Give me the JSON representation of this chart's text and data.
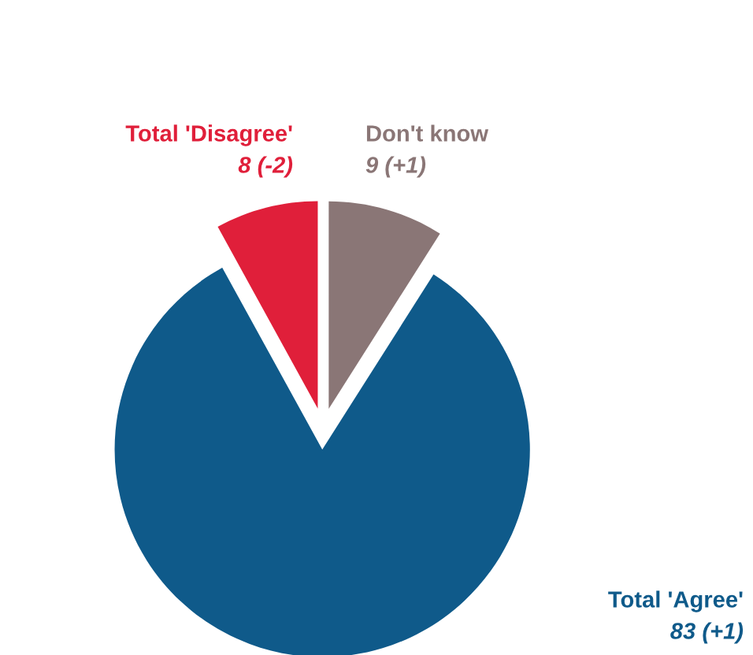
{
  "chart_data": {
    "type": "pie",
    "categories": [
      "Don't know",
      "Total 'Agree'",
      "Total 'Disagree'"
    ],
    "values": [
      9,
      83,
      8
    ],
    "colors": [
      "#8a7676",
      "#0f5a8a",
      "#e01f3a"
    ],
    "value_labels": [
      "9 (+1)",
      "83 (+1)",
      "8 (-2)"
    ],
    "legend": false
  }
}
